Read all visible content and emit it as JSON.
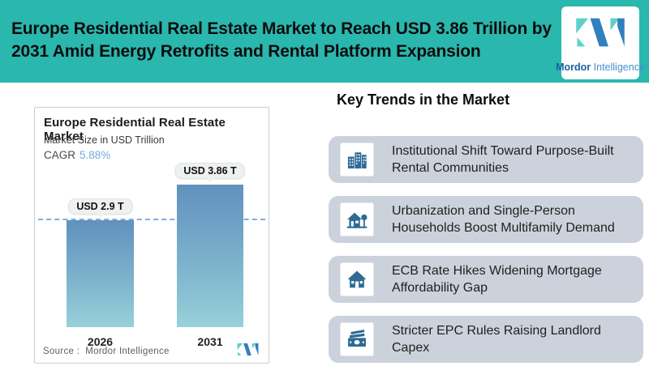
{
  "banner": {
    "title_lines": [
      "Europe Residential Real Estate Market to Reach USD 3.86 Trillion by",
      "2031 Amid Energy Retrofits and Rental Platform Expansion"
    ]
  },
  "logo": {
    "name_bold": "Mordor",
    "name_light": "Intelligence"
  },
  "chart_card": {
    "title": "Europe Residential Real Estate Market",
    "subtitle": "Market Size in USD Trillion",
    "cagr_label": "CAGR",
    "cagr_value": "5.88%",
    "source": "Source :  Mordor Intelligence"
  },
  "chart_data": {
    "type": "bar",
    "title": "Europe Residential Real Estate Market",
    "subtitle": "Market Size in USD Trillion",
    "cagr": "5.88%",
    "categories": [
      "2026",
      "2031"
    ],
    "values": [
      2.9,
      3.86
    ],
    "value_labels": [
      "USD 2.9 T",
      "USD 3.86 T"
    ],
    "unit": "USD Trillion",
    "reference_line_value": 2.9,
    "ylim": [
      0,
      4.3
    ],
    "grid": "off",
    "legend": "none",
    "source": "Source :  Mordor Intelligence"
  },
  "trends": {
    "heading": "Key Trends in the Market",
    "items": [
      {
        "icon": "buildings-icon",
        "lines": [
          "Institutional Shift Toward Purpose-Built",
          "Rental Communities"
        ]
      },
      {
        "icon": "house-tree-icon",
        "lines": [
          "Urbanization and Single-Person",
          "Households Boost Multifamily Demand"
        ]
      },
      {
        "icon": "house-icon",
        "lines": [
          "ECB Rate Hikes Widening Mortgage",
          "Affordability Gap"
        ]
      },
      {
        "icon": "banknotes-icon",
        "lines": [
          "Stricter EPC Rules Raising Landlord",
          "Capex"
        ]
      }
    ]
  },
  "colors": {
    "banner_teal": "#2ab7ae",
    "trend_row_bg": "#ccd2db",
    "icon_blue": "#2d6b94",
    "bar_gradient_top": "#6191be",
    "bar_gradient_bottom": "#98d0da",
    "dashed_line_blue": "#6fa0d4",
    "cagr_blue": "#74abdc",
    "logo_blue": "#2f80be",
    "logo_teal": "#5ed1c9"
  }
}
